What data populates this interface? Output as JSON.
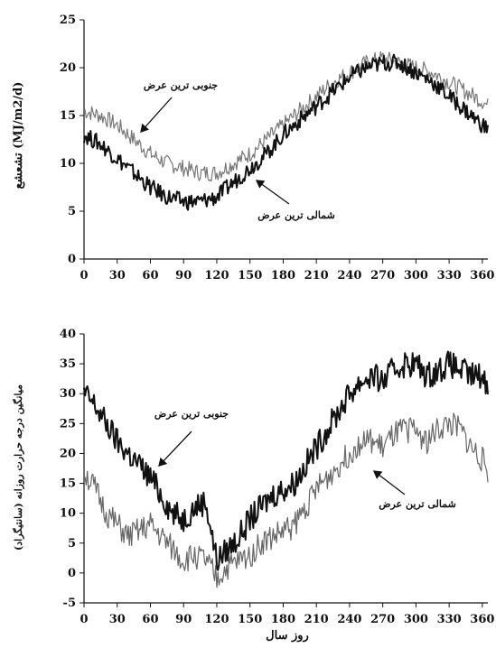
{
  "chart_data": [
    {
      "type": "line",
      "ylabel": "تشعشع (MJ/m2/d)",
      "xlim": [
        0,
        365
      ],
      "ylim": [
        0,
        25
      ],
      "xticks": [
        "0",
        "30",
        "60",
        "90",
        "120",
        "150",
        "180",
        "210",
        "240",
        "270",
        "300",
        "330",
        "360"
      ],
      "yticks": [
        "0",
        "5",
        "10",
        "15",
        "20",
        "25"
      ],
      "grid": false,
      "series": [
        {
          "name": "جنوبی ترین عرض",
          "color": "#777777",
          "x": [
            0,
            15,
            30,
            45,
            60,
            75,
            90,
            105,
            120,
            135,
            150,
            165,
            180,
            195,
            210,
            225,
            240,
            255,
            270,
            285,
            300,
            315,
            330,
            345,
            360,
            365
          ],
          "y": [
            15.5,
            15,
            14,
            12.5,
            11,
            10,
            9.5,
            9,
            9,
            10,
            11,
            12.5,
            14,
            15.5,
            17,
            18.5,
            19.5,
            20.5,
            21,
            20.5,
            20,
            19.5,
            18.5,
            17.5,
            16.5,
            16
          ]
        },
        {
          "name": "شمالی ترین عرض",
          "color": "#111111",
          "x": [
            0,
            15,
            30,
            45,
            60,
            75,
            90,
            105,
            120,
            135,
            150,
            165,
            180,
            195,
            210,
            225,
            240,
            255,
            270,
            285,
            300,
            315,
            330,
            345,
            360,
            365
          ],
          "y": [
            13,
            12,
            10.5,
            9,
            7.5,
            6.5,
            6,
            6,
            6.5,
            8,
            9.5,
            11,
            13,
            14.5,
            16,
            17.5,
            19,
            20,
            20.5,
            20.5,
            19.5,
            18.5,
            17,
            15.5,
            14,
            13.5
          ]
        }
      ],
      "annotations": [
        {
          "text": "جنوبی ترین عرض",
          "target": "upper-left"
        },
        {
          "text": "شمالی ترین عرض",
          "target": "middle"
        }
      ]
    },
    {
      "type": "line",
      "ylabel": "میانگین درجه حرارت روزانه (سانتیگراد)",
      "xlabel": "روز سال",
      "xlim": [
        0,
        365
      ],
      "ylim": [
        -5,
        40
      ],
      "xticks": [
        "0",
        "30",
        "60",
        "90",
        "120",
        "150",
        "180",
        "210",
        "240",
        "270",
        "300",
        "330",
        "360"
      ],
      "yticks": [
        "-5",
        "0",
        "5",
        "10",
        "15",
        "20",
        "25",
        "30",
        "35",
        "40"
      ],
      "grid": false,
      "series": [
        {
          "name": "جنوبی ترین عرض",
          "color": "#111111",
          "x": [
            0,
            10,
            20,
            30,
            40,
            50,
            60,
            70,
            80,
            90,
            100,
            110,
            120,
            130,
            140,
            150,
            160,
            170,
            180,
            190,
            200,
            210,
            220,
            230,
            240,
            250,
            260,
            270,
            280,
            290,
            300,
            310,
            320,
            330,
            340,
            350,
            360,
            365
          ],
          "y": [
            30,
            28,
            25,
            22,
            20,
            18,
            16,
            13,
            10,
            9,
            11,
            12,
            2,
            4,
            6,
            9,
            11,
            13,
            14,
            15,
            18,
            21,
            24,
            27,
            30,
            32,
            33,
            32,
            34,
            35,
            35,
            33,
            34,
            35,
            34,
            33,
            33,
            31
          ]
        },
        {
          "name": "شمالی ترین عرض",
          "color": "#666666",
          "x": [
            0,
            10,
            20,
            30,
            40,
            50,
            60,
            70,
            80,
            90,
            100,
            110,
            120,
            130,
            140,
            150,
            160,
            170,
            180,
            190,
            200,
            210,
            220,
            230,
            240,
            250,
            260,
            270,
            280,
            290,
            300,
            310,
            320,
            330,
            340,
            350,
            360,
            365
          ],
          "y": [
            17,
            14,
            10,
            8,
            6,
            7,
            8,
            6,
            4,
            2,
            3,
            2,
            -1,
            1,
            2,
            3,
            5,
            6,
            7,
            8,
            11,
            14,
            16,
            18,
            20,
            22,
            22,
            21,
            23,
            24,
            24,
            22,
            24,
            25,
            24,
            21,
            19,
            17
          ]
        }
      ],
      "annotations": [
        {
          "text": "جنوبی ترین عرض",
          "target": "upper-left"
        },
        {
          "text": "شمالی ترین عرض",
          "target": "right"
        }
      ]
    }
  ]
}
